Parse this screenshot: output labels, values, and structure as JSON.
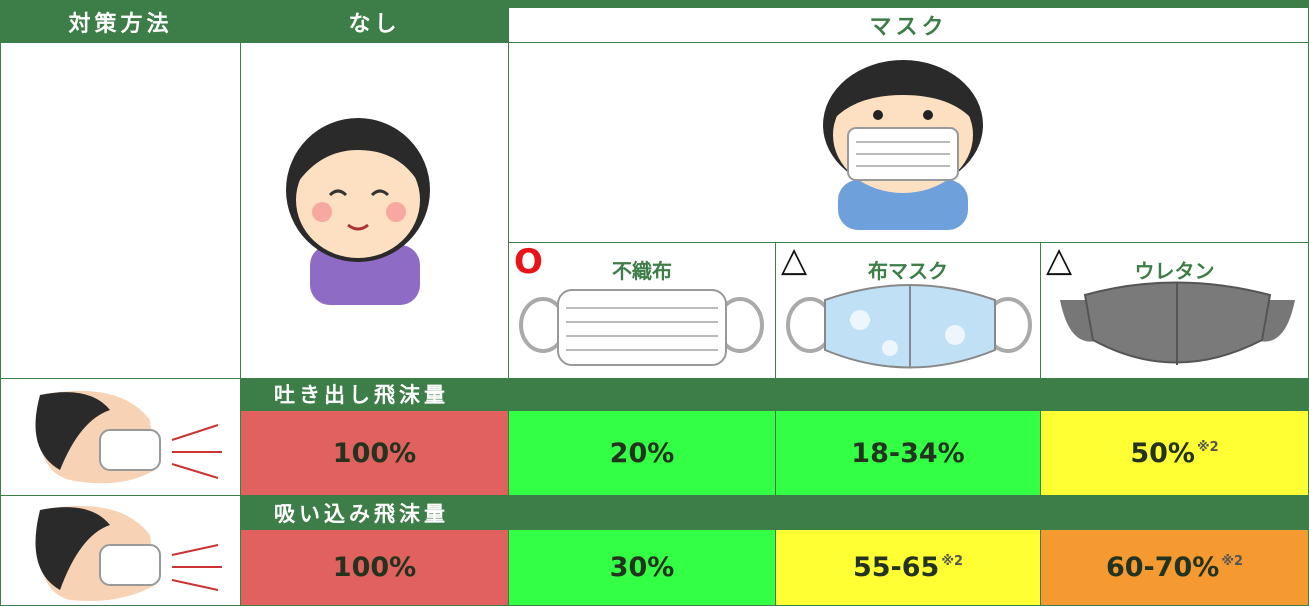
{
  "header": {
    "method": "対策方法",
    "none": "なし",
    "mask": "マスク"
  },
  "mask_types": [
    {
      "rating": "O",
      "label": "不織布"
    },
    {
      "rating": "△",
      "label": "布マスク"
    },
    {
      "rating": "△",
      "label": "ウレタン"
    }
  ],
  "rows": [
    {
      "label": "吐き出し飛沫量",
      "cells": [
        {
          "text": "100%"
        },
        {
          "text": "20%"
        },
        {
          "text": "18-34%"
        },
        {
          "text": "50%",
          "note": "※2"
        }
      ]
    },
    {
      "label": "吸い込み飛沫量",
      "cells": [
        {
          "text": "100%"
        },
        {
          "text": "30%"
        },
        {
          "text": "55-65",
          "note": "※2"
        },
        {
          "text": "60-70%",
          "note": "※2"
        }
      ]
    }
  ]
}
